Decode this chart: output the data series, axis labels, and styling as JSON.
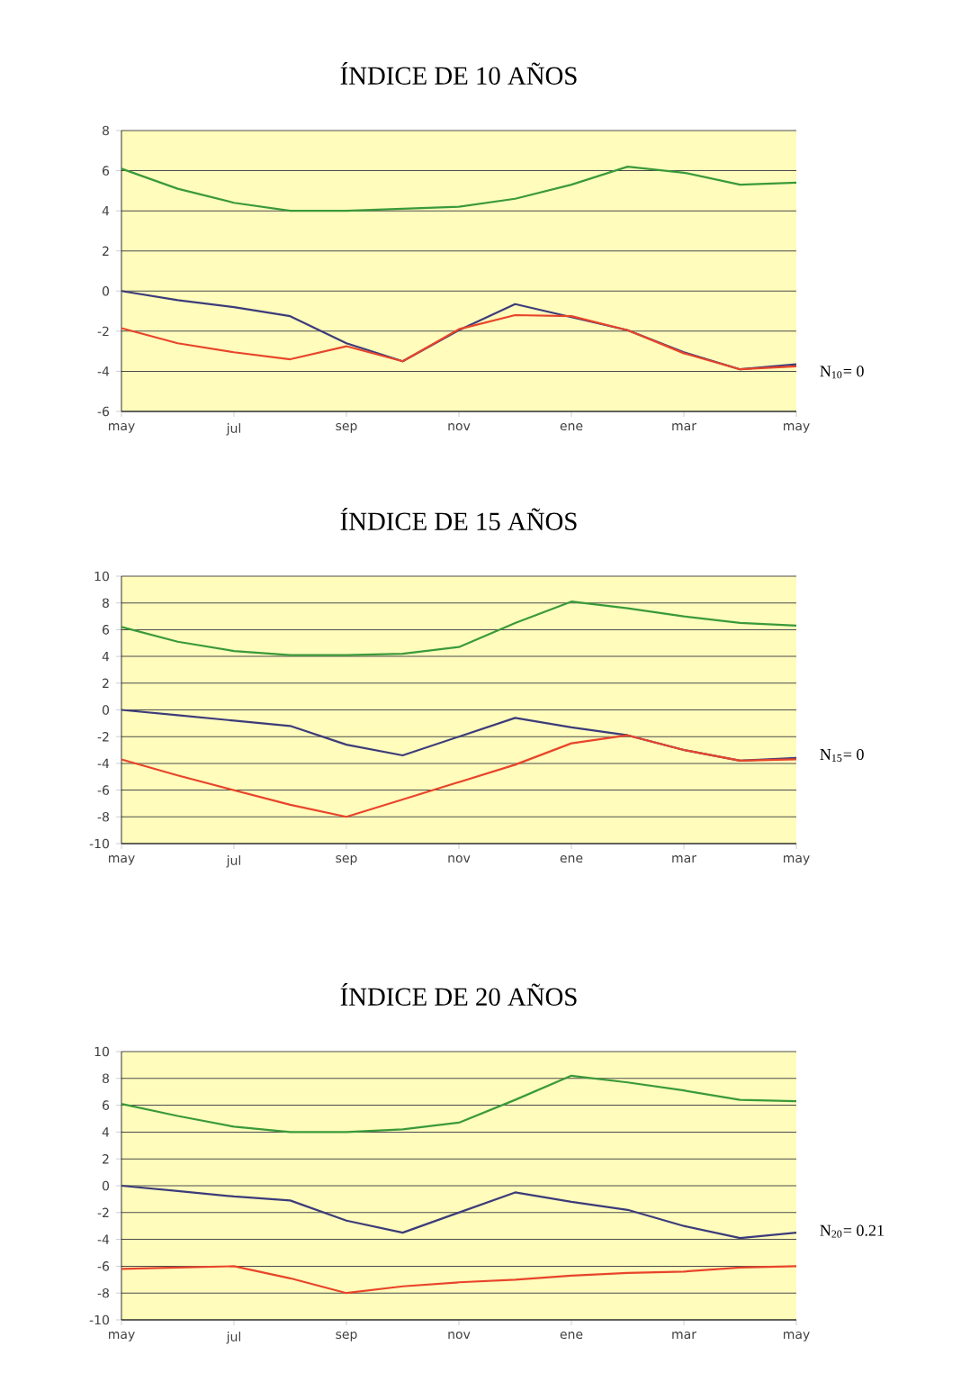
{
  "chart_data": [
    {
      "type": "line",
      "title": "ÍNDICE DE 10 AÑOS",
      "categories": [
        "may",
        null,
        "jul",
        null,
        "sep",
        null,
        "nov",
        null,
        "ene",
        null,
        "mar",
        null,
        "may"
      ],
      "series": [
        {
          "color": "#3a9a3a",
          "values": [
            6.1,
            5.1,
            4.4,
            4.0,
            4.0,
            4.1,
            4.2,
            4.6,
            5.3,
            6.2,
            5.9,
            5.3,
            5.4
          ]
        },
        {
          "color": "#3c3c7a",
          "values": [
            0,
            -0.45,
            -0.8,
            -1.25,
            -2.6,
            -3.5,
            -1.95,
            -0.65,
            -1.3,
            -1.95,
            -3.05,
            -3.9,
            -3.65
          ]
        },
        {
          "color": "#e8452a",
          "values": [
            -1.85,
            -2.6,
            -3.05,
            -3.4,
            -2.75,
            -3.5,
            -1.9,
            -1.2,
            -1.25,
            -1.95,
            -3.1,
            -3.9,
            -3.75
          ]
        }
      ],
      "ylim": [
        -6,
        8
      ],
      "yticks": [
        -6,
        -4,
        -2,
        0,
        2,
        4,
        6,
        8
      ],
      "grid": "y",
      "annotations": [
        "N$_{10}$= 0"
      ]
    },
    {
      "type": "line",
      "title": "ÍNDICE DE 15 AÑOS",
      "categories": [
        "may",
        null,
        "jul",
        null,
        "sep",
        null,
        "nov",
        null,
        "ene",
        null,
        "mar",
        null,
        "may"
      ],
      "series": [
        {
          "color": "#3a9a3a",
          "values": [
            6.2,
            5.1,
            4.4,
            4.1,
            4.1,
            4.2,
            4.7,
            6.5,
            8.1,
            7.6,
            7.0,
            6.5,
            6.3
          ]
        },
        {
          "color": "#3c3c7a",
          "values": [
            0,
            -0.4,
            -0.8,
            -1.2,
            -2.6,
            -3.4,
            -2.0,
            -0.6,
            -1.3,
            -1.9,
            -3.0,
            -3.8,
            -3.6
          ]
        },
        {
          "color": "#e8452a",
          "values": [
            -3.7,
            -4.9,
            -6.0,
            -7.1,
            -8.0,
            -6.7,
            -5.4,
            -4.1,
            -2.5,
            -1.9,
            -3.0,
            -3.8,
            -3.7
          ]
        }
      ],
      "ylim": [
        -10,
        10
      ],
      "yticks": [
        -10,
        -8,
        -6,
        -4,
        -2,
        0,
        2,
        4,
        6,
        8,
        10
      ],
      "grid": "y",
      "annotations": [
        "N$_{15}$= 0"
      ]
    },
    {
      "type": "line",
      "title": "ÍNDICE DE 20 AÑOS",
      "categories": [
        "may",
        null,
        "jul",
        null,
        "sep",
        null,
        "nov",
        null,
        "ene",
        null,
        "mar",
        null,
        "may"
      ],
      "series": [
        {
          "color": "#3a9a3a",
          "values": [
            6.1,
            5.2,
            4.4,
            4.0,
            4.0,
            4.2,
            4.7,
            6.4,
            8.2,
            7.7,
            7.1,
            6.4,
            6.3
          ]
        },
        {
          "color": "#3c3c7a",
          "values": [
            0,
            -0.4,
            -0.8,
            -1.1,
            -2.6,
            -3.5,
            -2.0,
            -0.5,
            -1.2,
            -1.8,
            -3.0,
            -3.9,
            -3.5
          ]
        },
        {
          "color": "#e8452a",
          "values": [
            -6.2,
            -6.1,
            -6.0,
            -6.9,
            -8.0,
            -7.5,
            -7.2,
            -7.0,
            -6.7,
            -6.5,
            -6.4,
            -6.1,
            -6.0
          ]
        }
      ],
      "ylim": [
        -10,
        10
      ],
      "yticks": [
        -10,
        -8,
        -6,
        -4,
        -2,
        0,
        2,
        4,
        6,
        8,
        10
      ],
      "grid": "y",
      "annotations": [
        "N$_{20}$= 0.21"
      ]
    }
  ]
}
